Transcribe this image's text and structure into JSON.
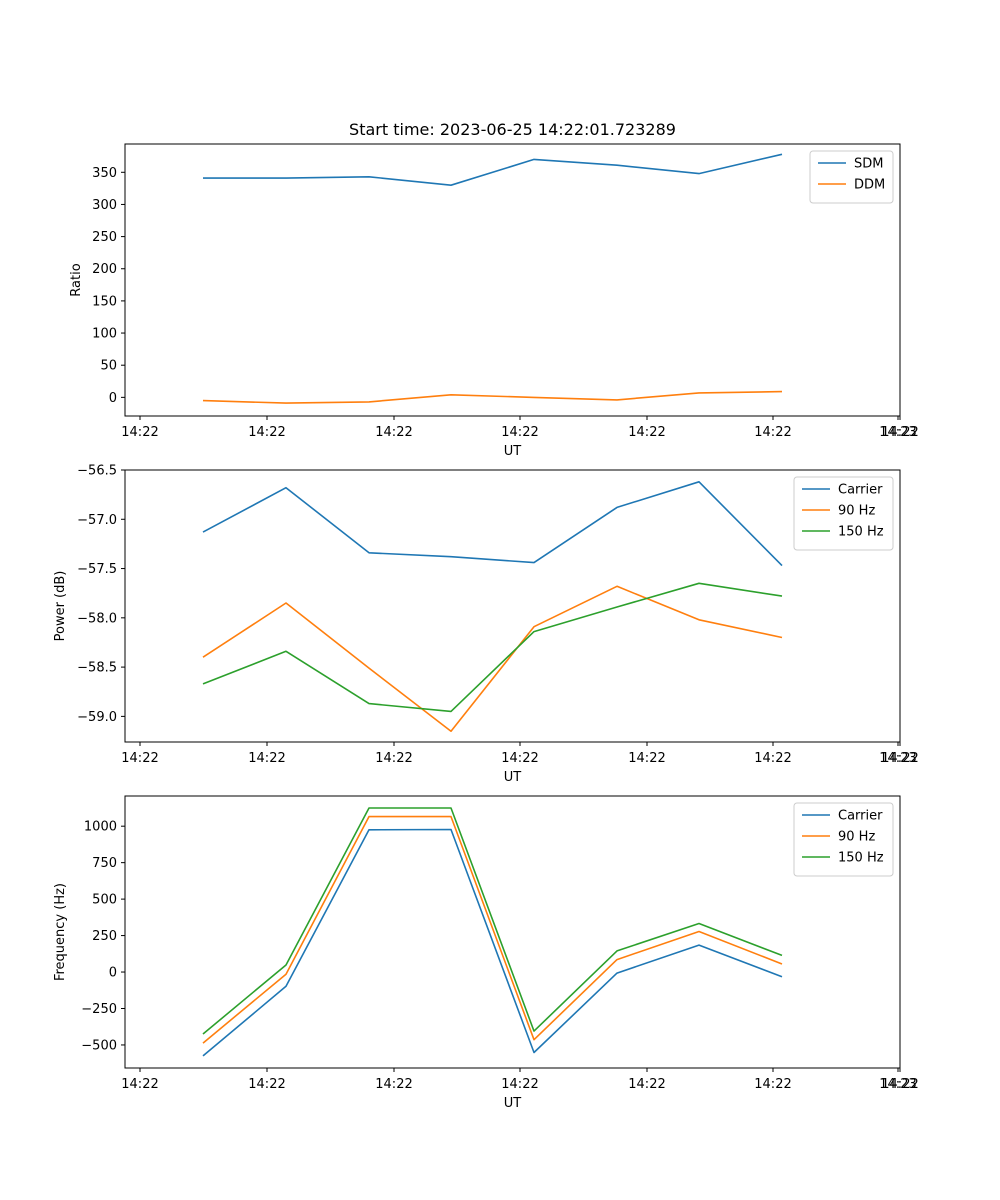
{
  "chart_data": [
    {
      "type": "line",
      "title": "Start time: 2023-06-25 14:22:01.723289",
      "xlabel": "UT",
      "ylabel": "Ratio",
      "x_tick_labels": [
        "14:22",
        "14:22",
        "14:22",
        "14:22",
        "14:22",
        "14:22",
        "14:22",
        "14:23"
      ],
      "y_ticks": [
        0,
        50,
        100,
        150,
        200,
        250,
        300,
        350
      ],
      "ylim": [
        -29,
        394
      ],
      "legend_position": "top-right",
      "grid": false,
      "series": [
        {
          "name": "SDM",
          "color": "#1f77b4",
          "values": [
            341,
            341,
            343,
            330,
            370,
            361,
            348,
            378
          ]
        },
        {
          "name": "DDM",
          "color": "#ff7f0e",
          "values": [
            -5,
            -9,
            -7,
            4,
            0,
            -4,
            7,
            9
          ]
        }
      ]
    },
    {
      "type": "line",
      "title": "",
      "xlabel": "UT",
      "ylabel": "Power (dB)",
      "x_tick_labels": [
        "14:22",
        "14:22",
        "14:22",
        "14:22",
        "14:22",
        "14:22",
        "14:22",
        "14:23"
      ],
      "y_ticks": [
        -59.0,
        -58.5,
        -58.0,
        -57.5,
        -57.0,
        -56.5
      ],
      "y_tick_labels": [
        "−59.0",
        "−58.5",
        "−58.0",
        "−57.5",
        "−57.0",
        "−56.5"
      ],
      "ylim": [
        -59.26,
        -56.5
      ],
      "legend_position": "top-right",
      "grid": false,
      "series": [
        {
          "name": "Carrier",
          "color": "#1f77b4",
          "values": [
            -57.13,
            -56.68,
            -57.34,
            -57.38,
            -57.44,
            -56.88,
            -56.62,
            -57.47
          ]
        },
        {
          "name": "90 Hz",
          "color": "#ff7f0e",
          "values": [
            -58.4,
            -57.85,
            -58.51,
            -59.15,
            -58.09,
            -57.68,
            -58.02,
            -58.2
          ]
        },
        {
          "name": "150 Hz",
          "color": "#2ca02c",
          "values": [
            -58.67,
            -58.34,
            -58.87,
            -58.95,
            -58.14,
            -57.89,
            -57.65,
            -57.78
          ]
        }
      ]
    },
    {
      "type": "line",
      "title": "",
      "xlabel": "UT",
      "ylabel": "Frequency (Hz)",
      "x_tick_labels": [
        "14:22",
        "14:22",
        "14:22",
        "14:22",
        "14:22",
        "14:22",
        "14:22",
        "14:23"
      ],
      "y_ticks": [
        -500,
        -250,
        0,
        250,
        500,
        750,
        1000
      ],
      "y_tick_labels": [
        "−500",
        "−250",
        "0",
        "250",
        "500",
        "750",
        "1000"
      ],
      "ylim": [
        -658,
        1207
      ],
      "legend_position": "top-right",
      "grid": false,
      "series": [
        {
          "name": "Carrier",
          "color": "#1f77b4",
          "values": [
            -575,
            -98,
            975,
            977,
            -552,
            -7,
            185,
            -33
          ]
        },
        {
          "name": "90 Hz",
          "color": "#ff7f0e",
          "values": [
            -487,
            -15,
            1066,
            1066,
            -464,
            85,
            278,
            55
          ]
        },
        {
          "name": "150 Hz",
          "color": "#2ca02c",
          "values": [
            -425,
            48,
            1125,
            1125,
            -405,
            145,
            333,
            114
          ]
        }
      ]
    }
  ]
}
